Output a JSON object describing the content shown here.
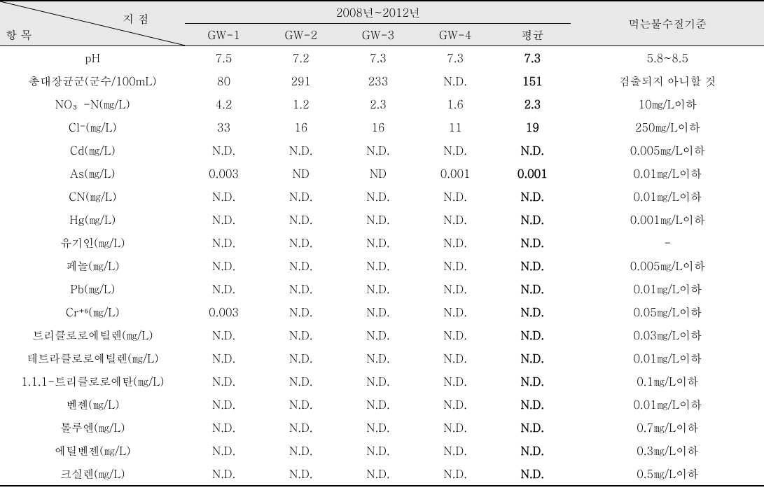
{
  "table": {
    "header": {
      "point_label": "지 점",
      "param_label": "항 목",
      "year_range": "2008년~2012년",
      "gw_cols": [
        "GW-1",
        "GW-2",
        "GW-3",
        "GW-4"
      ],
      "avg_label": "평균",
      "standard_label": "먹는물수질기준"
    },
    "rows": [
      {
        "param": "pH",
        "gw": [
          "7.5",
          "7.2",
          "7.3",
          "7.3"
        ],
        "avg": "7.3",
        "standard": "5.8~8.5"
      },
      {
        "param": "총대장균군(군수/100mL)",
        "gw": [
          "80",
          "291",
          "233",
          "N.D."
        ],
        "avg": "151",
        "standard": "검출되지 아니할 것"
      },
      {
        "param": "NO₃-N(㎎/L)",
        "gw": [
          "4.2",
          "1.2",
          "2.3",
          "1.6"
        ],
        "avg": "2.3",
        "standard": "10㎎/L이하"
      },
      {
        "param": "Cl⁻(㎎/L)",
        "gw": [
          "33",
          "16",
          "16",
          "11"
        ],
        "avg": "19",
        "standard": "250㎎/L이하"
      },
      {
        "param": "Cd(㎎/L)",
        "gw": [
          "N.D.",
          "N.D.",
          "N.D.",
          "N.D."
        ],
        "avg": "N.D.",
        "standard": "0.005㎎/L이하"
      },
      {
        "param": "As(㎎/L)",
        "gw": [
          "0.003",
          "ND",
          "ND",
          "0.001"
        ],
        "avg": "0.001",
        "standard": "0.01㎎/L이하"
      },
      {
        "param": "CN(㎎/L)",
        "gw": [
          "N.D.",
          "N.D.",
          "N.D.",
          "N.D."
        ],
        "avg": "N.D.",
        "standard": "0.01㎎/L이하"
      },
      {
        "param": "Hg(㎎/L)",
        "gw": [
          "N.D.",
          "N.D.",
          "N.D.",
          "N.D."
        ],
        "avg": "N.D.",
        "standard": "0.001㎎/L이하"
      },
      {
        "param": "유기인(㎎/L)",
        "gw": [
          "N.D.",
          "N.D.",
          "N.D.",
          "N.D."
        ],
        "avg": "N.D.",
        "standard": "-"
      },
      {
        "param": "페놀(㎎/L)",
        "gw": [
          "N.D.",
          "N.D.",
          "N.D.",
          "N.D."
        ],
        "avg": "N.D.",
        "standard": "0.005㎎/L이하"
      },
      {
        "param": "Pb(㎎/L)",
        "gw": [
          "N.D.",
          "N.D.",
          "N.D.",
          "N.D."
        ],
        "avg": "N.D.",
        "standard": "0.01㎎/L이하"
      },
      {
        "param": "Cr⁺⁶(㎎/L)",
        "gw": [
          "0.003",
          "N.D.",
          "N.D.",
          "N.D."
        ],
        "avg": "N.D.",
        "standard": "0.05㎎/L이하"
      },
      {
        "param": "트리클로로에틸렌(㎎/L)",
        "gw": [
          "N.D.",
          "N.D.",
          "N.D.",
          "N.D."
        ],
        "avg": "N.D.",
        "standard": "0.03㎎/L이하"
      },
      {
        "param": "테트라클로로에틸렌(㎎/L)",
        "gw": [
          "N.D.",
          "N.D.",
          "N.D.",
          "N.D."
        ],
        "avg": "N.D.",
        "standard": "0.01㎎/L이하"
      },
      {
        "param": "1.1.1-트리클로로에탄(㎎/L)",
        "gw": [
          "N.D.",
          "N.D.",
          "N.D.",
          "N.D."
        ],
        "avg": "N.D.",
        "standard": "0.1㎎/L이하"
      },
      {
        "param": "벤젠(㎎/L)",
        "gw": [
          "N.D.",
          "N.D.",
          "N.D.",
          "N.D."
        ],
        "avg": "N.D.",
        "standard": "0.01㎎/L이하"
      },
      {
        "param": "톨루엔(㎎/L)",
        "gw": [
          "N.D.",
          "N.D.",
          "N.D.",
          "N.D."
        ],
        "avg": "N.D.",
        "standard": "0.7㎎/L이하"
      },
      {
        "param": "에틸벤젠(㎎/L)",
        "gw": [
          "N.D.",
          "N.D.",
          "N.D.",
          "N.D."
        ],
        "avg": "N.D.",
        "standard": "0.3㎎/L이하"
      },
      {
        "param": "크실렌(㎎/L)",
        "gw": [
          "N.D.",
          "N.D.",
          "N.D.",
          "N.D."
        ],
        "avg": "N.D.",
        "standard": "0.5㎎/L이하"
      }
    ],
    "styling": {
      "header_bg": "#e8e8e8",
      "border_color": "#000000",
      "font_size_body": 16,
      "font_size_header": 16,
      "col_widths": {
        "param": 240,
        "gw": 100,
        "avg": 100,
        "standard": 250
      }
    }
  }
}
